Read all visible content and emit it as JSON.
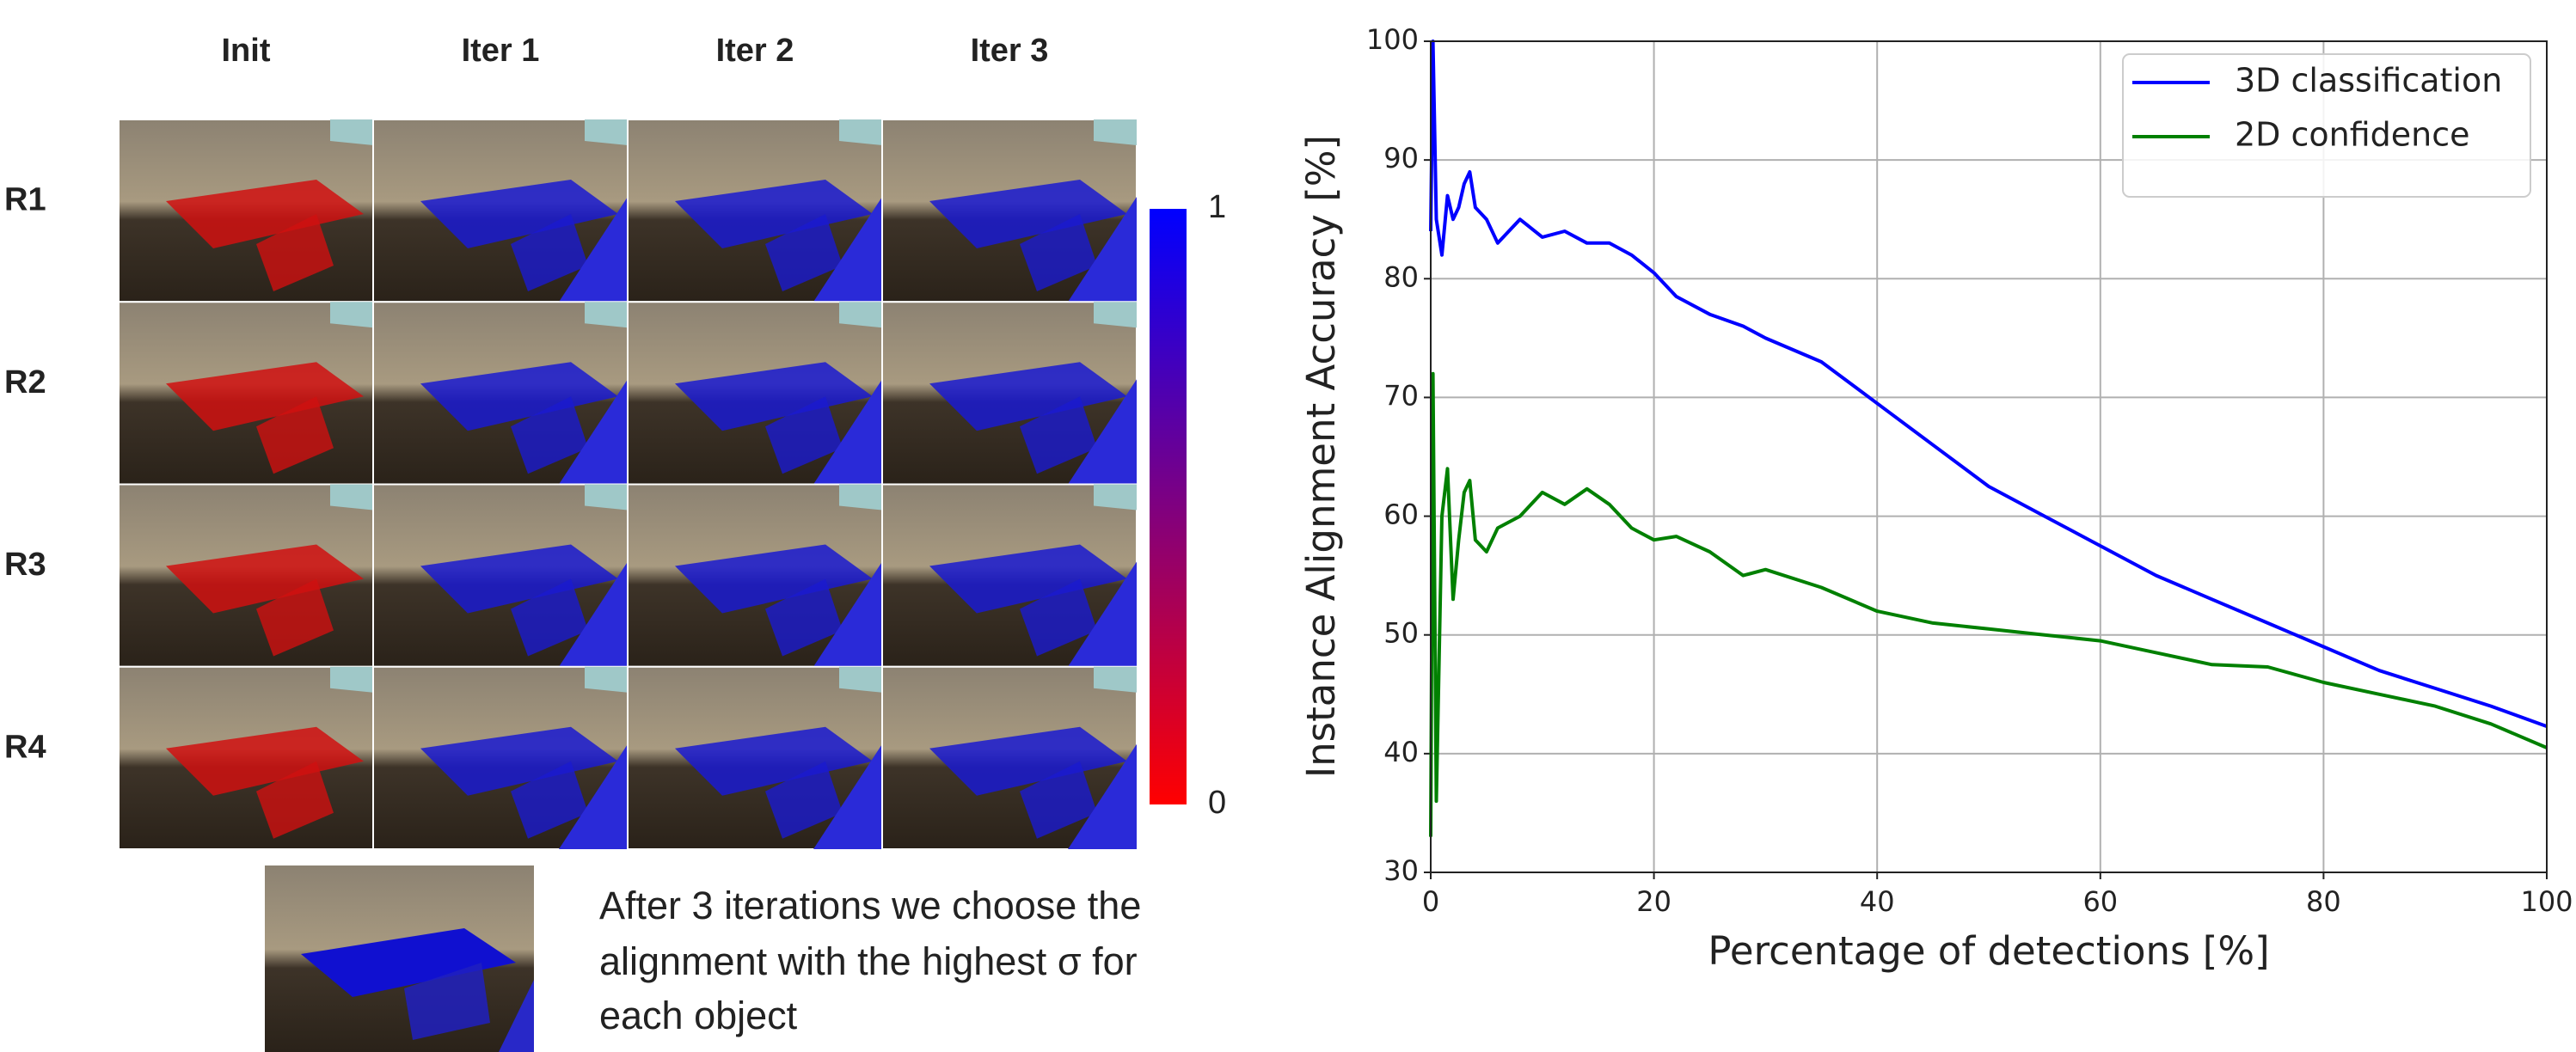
{
  "figure": {
    "columns": [
      "Init",
      "Iter 1",
      "Iter 2",
      "Iter 3"
    ],
    "rows": [
      "R1",
      "R2",
      "R3",
      "R4"
    ],
    "colorbar": {
      "ticks": [
        0,
        1
      ],
      "colors": [
        "#ff0000",
        "#0000ff"
      ]
    },
    "caption": [
      "After 3 iterations we choose the",
      "alignment with the highest σ for",
      "each object"
    ]
  },
  "chart_data": {
    "type": "line",
    "ylabel": "Instance Alignment Accuracy [%]",
    "xlabel": "Percentage of detections [%]",
    "x": [
      0,
      0.2,
      0.5,
      1,
      1.5,
      2,
      2.5,
      3,
      3.5,
      4,
      5,
      6,
      8,
      10,
      12,
      14,
      16,
      18,
      20,
      22,
      25,
      28,
      30,
      35,
      40,
      45,
      50,
      55,
      60,
      65,
      70,
      75,
      80,
      85,
      90,
      95,
      100
    ],
    "series": [
      {
        "name": "3D classification",
        "color": "#0000ff",
        "values": [
          84,
          100,
          85,
          82,
          87,
          85,
          86,
          88,
          89,
          86,
          85,
          83,
          85,
          83.5,
          84,
          83,
          83,
          82,
          80.5,
          78.5,
          77,
          76,
          75,
          73,
          69.5,
          66,
          62.5,
          60,
          57.5,
          55,
          53,
          51,
          49,
          47,
          45.5,
          44,
          42.3
        ]
      },
      {
        "name": "2D confidence",
        "color": "#008000",
        "values": [
          33,
          72,
          36,
          60,
          64,
          53,
          58,
          62,
          63,
          58,
          57,
          59,
          60,
          62,
          61,
          62.3,
          61,
          59,
          58,
          58.3,
          57,
          55,
          55.5,
          54,
          52,
          51,
          50.5,
          50,
          49.5,
          48.5,
          47.5,
          47.3,
          46,
          45,
          44,
          42.5,
          40.5
        ]
      }
    ],
    "xlim": [
      0,
      100
    ],
    "xticks": [
      0,
      20,
      40,
      60,
      80,
      100
    ],
    "ylim": [
      30,
      100
    ],
    "yticks": [
      30,
      40,
      50,
      60,
      70,
      80,
      90,
      100
    ],
    "grid": true,
    "legend": "upper right"
  }
}
